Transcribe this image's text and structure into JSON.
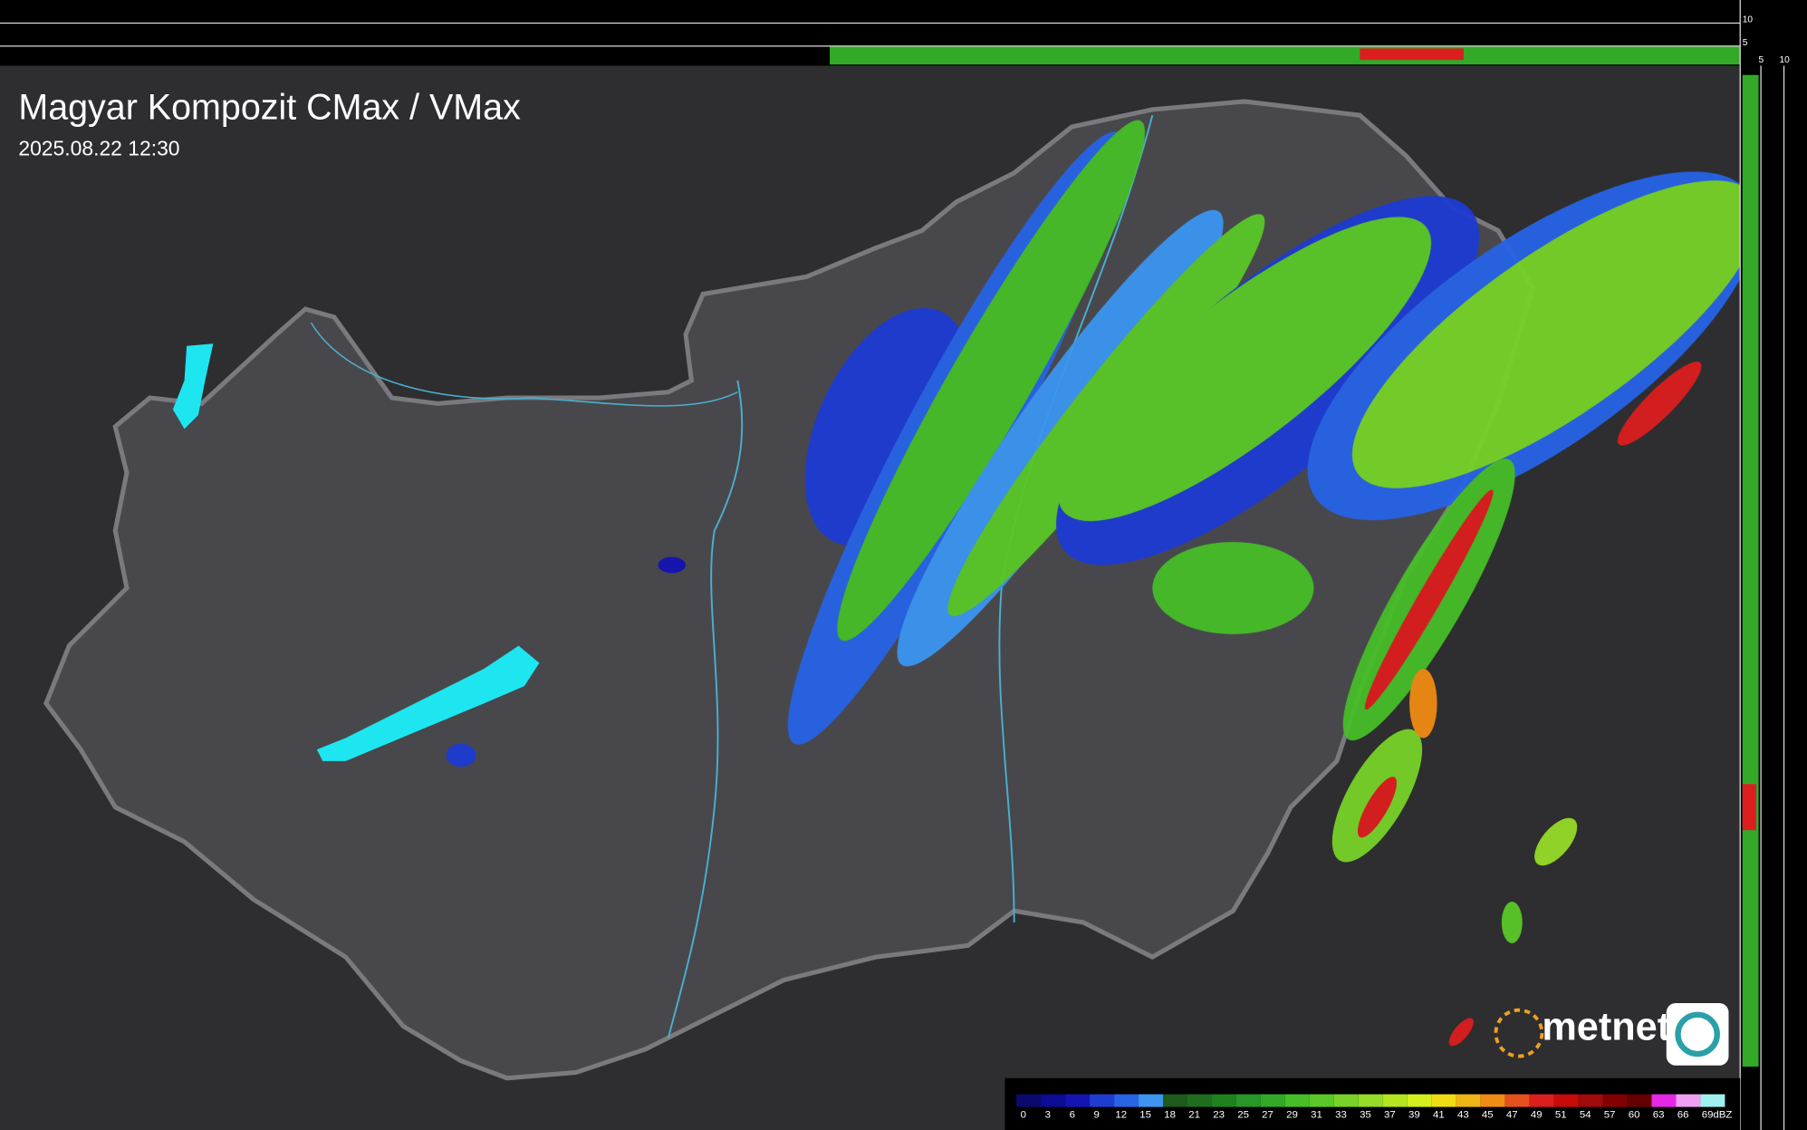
{
  "header": {
    "title": "Magyar Kompozit CMax / VMax",
    "datetime": "2025.08.22 12:30"
  },
  "profile_scale": {
    "top": [
      "10",
      "5"
    ],
    "side": [
      "5",
      "10"
    ]
  },
  "logo": {
    "text": "metnet"
  },
  "legend": {
    "unit": "dBZ",
    "ticks": [
      0,
      3,
      6,
      9,
      12,
      15,
      18,
      21,
      23,
      25,
      27,
      29,
      31,
      33,
      35,
      37,
      39,
      41,
      43,
      45,
      47,
      49,
      51,
      54,
      57,
      60,
      63,
      66,
      69
    ],
    "colors": [
      "#0a0a6e",
      "#0c0c96",
      "#1414b4",
      "#1e3cd2",
      "#2864e6",
      "#3c96f0",
      "#1e5a1e",
      "#1e6e1e",
      "#1e821e",
      "#289628",
      "#32aa28",
      "#46be28",
      "#5ac828",
      "#78d228",
      "#96dc28",
      "#b4e61e",
      "#d2f01e",
      "#f0dc14",
      "#f0b414",
      "#f08c14",
      "#e6501e",
      "#dc1e1e",
      "#c80a0a",
      "#a00a0a",
      "#820000",
      "#640000",
      "#e628e6",
      "#f0a0f0",
      "#a0f0f0"
    ]
  }
}
